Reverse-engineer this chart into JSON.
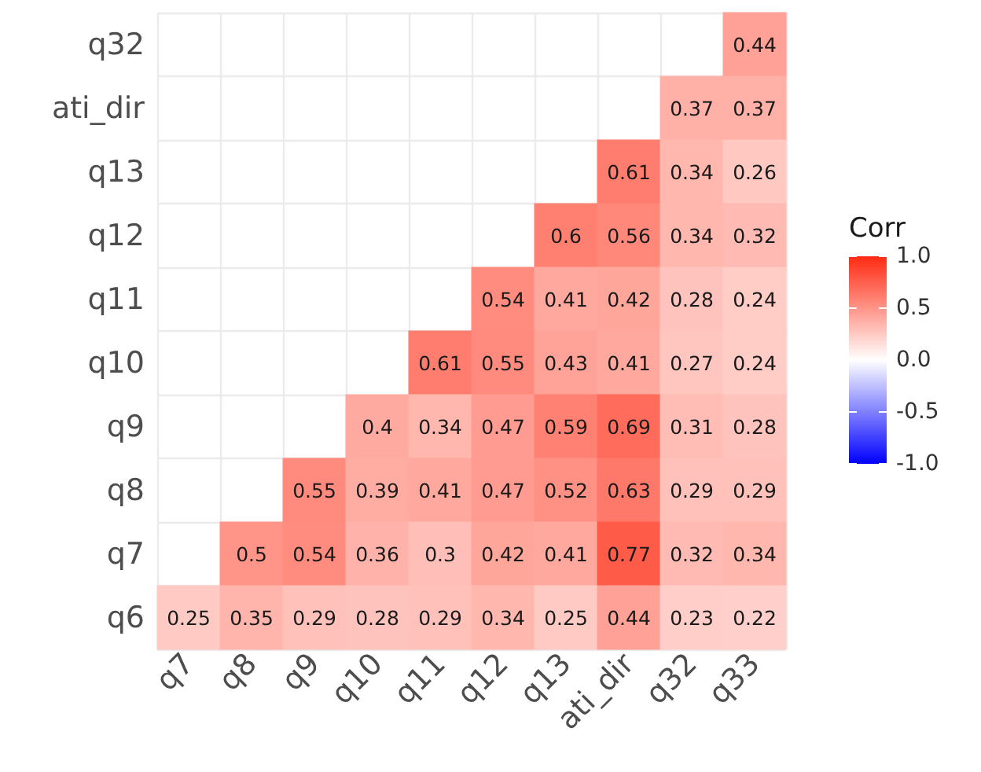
{
  "chart_data": {
    "type": "heatmap",
    "clabel": "Corr",
    "categories": [
      "q7",
      "q8",
      "q9",
      "q10",
      "q11",
      "q12",
      "q13",
      "ati_dir",
      "q32",
      "q33"
    ],
    "y_categories": [
      "q32",
      "ati_dir",
      "q13",
      "q12",
      "q11",
      "q10",
      "q9",
      "q8",
      "q7",
      "q6"
    ],
    "cells": [
      [
        null,
        null,
        null,
        null,
        null,
        null,
        null,
        null,
        null,
        0.44
      ],
      [
        null,
        null,
        null,
        null,
        null,
        null,
        null,
        null,
        0.37,
        0.37
      ],
      [
        null,
        null,
        null,
        null,
        null,
        null,
        null,
        0.61,
        0.34,
        0.26
      ],
      [
        null,
        null,
        null,
        null,
        null,
        null,
        0.6,
        0.56,
        0.34,
        0.32
      ],
      [
        null,
        null,
        null,
        null,
        null,
        0.54,
        0.41,
        0.42,
        0.28,
        0.24
      ],
      [
        null,
        null,
        null,
        null,
        0.61,
        0.55,
        0.43,
        0.41,
        0.27,
        0.24
      ],
      [
        null,
        null,
        null,
        0.4,
        0.34,
        0.47,
        0.59,
        0.69,
        0.31,
        0.28
      ],
      [
        null,
        null,
        0.55,
        0.39,
        0.41,
        0.47,
        0.52,
        0.63,
        0.29,
        0.29
      ],
      [
        null,
        0.5,
        0.54,
        0.36,
        0.3,
        0.42,
        0.41,
        0.77,
        0.32,
        0.34
      ],
      [
        0.25,
        0.35,
        0.29,
        0.28,
        0.29,
        0.34,
        0.25,
        0.44,
        0.23,
        0.22
      ]
    ],
    "clim": [
      -1,
      1
    ],
    "cticks": [
      {
        "value": 1,
        "label": "1.0"
      },
      {
        "value": 0.5,
        "label": "0.5"
      },
      {
        "value": 0,
        "label": "0.0"
      },
      {
        "value": -0.5,
        "label": "-0.5"
      },
      {
        "value": -1,
        "label": "-1.0"
      }
    ],
    "data_labels": true,
    "grid": true
  }
}
